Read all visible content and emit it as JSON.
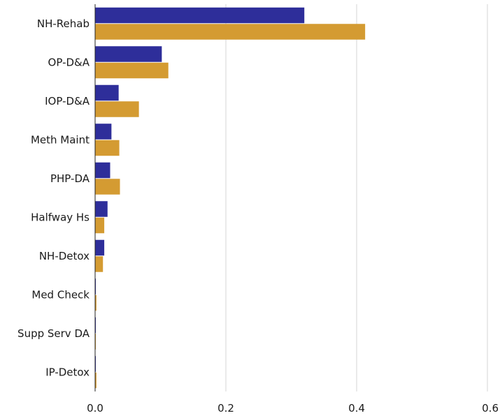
{
  "chart_data": {
    "type": "bar",
    "orientation": "horizontal",
    "title": "",
    "xlabel": "",
    "ylabel": "",
    "categories": [
      "NH-Rehab",
      "OP-D&A",
      "IOP-D&A",
      "Meth Maint",
      "PHP-DA",
      "Halfway Hs",
      "NH-Detox",
      "Med Check",
      "Supp Serv DA",
      "IP-Detox"
    ],
    "series": [
      {
        "color": "#2e2e9a",
        "values": [
          0.32,
          0.102,
          0.036,
          0.025,
          0.023,
          0.019,
          0.014,
          0.001,
          0.001,
          0.001
        ]
      },
      {
        "color": "#d49b32",
        "values": [
          0.413,
          0.112,
          0.067,
          0.037,
          0.038,
          0.014,
          0.012,
          0.002,
          0.001,
          0.002
        ]
      }
    ],
    "xlim": [
      0,
      0.6
    ],
    "xticks": [
      0.0,
      0.2,
      0.4,
      0.6
    ],
    "xtick_labels": [
      "0.0",
      "0.2",
      "0.4",
      "0.6"
    ],
    "grid": true,
    "legend": "none"
  }
}
